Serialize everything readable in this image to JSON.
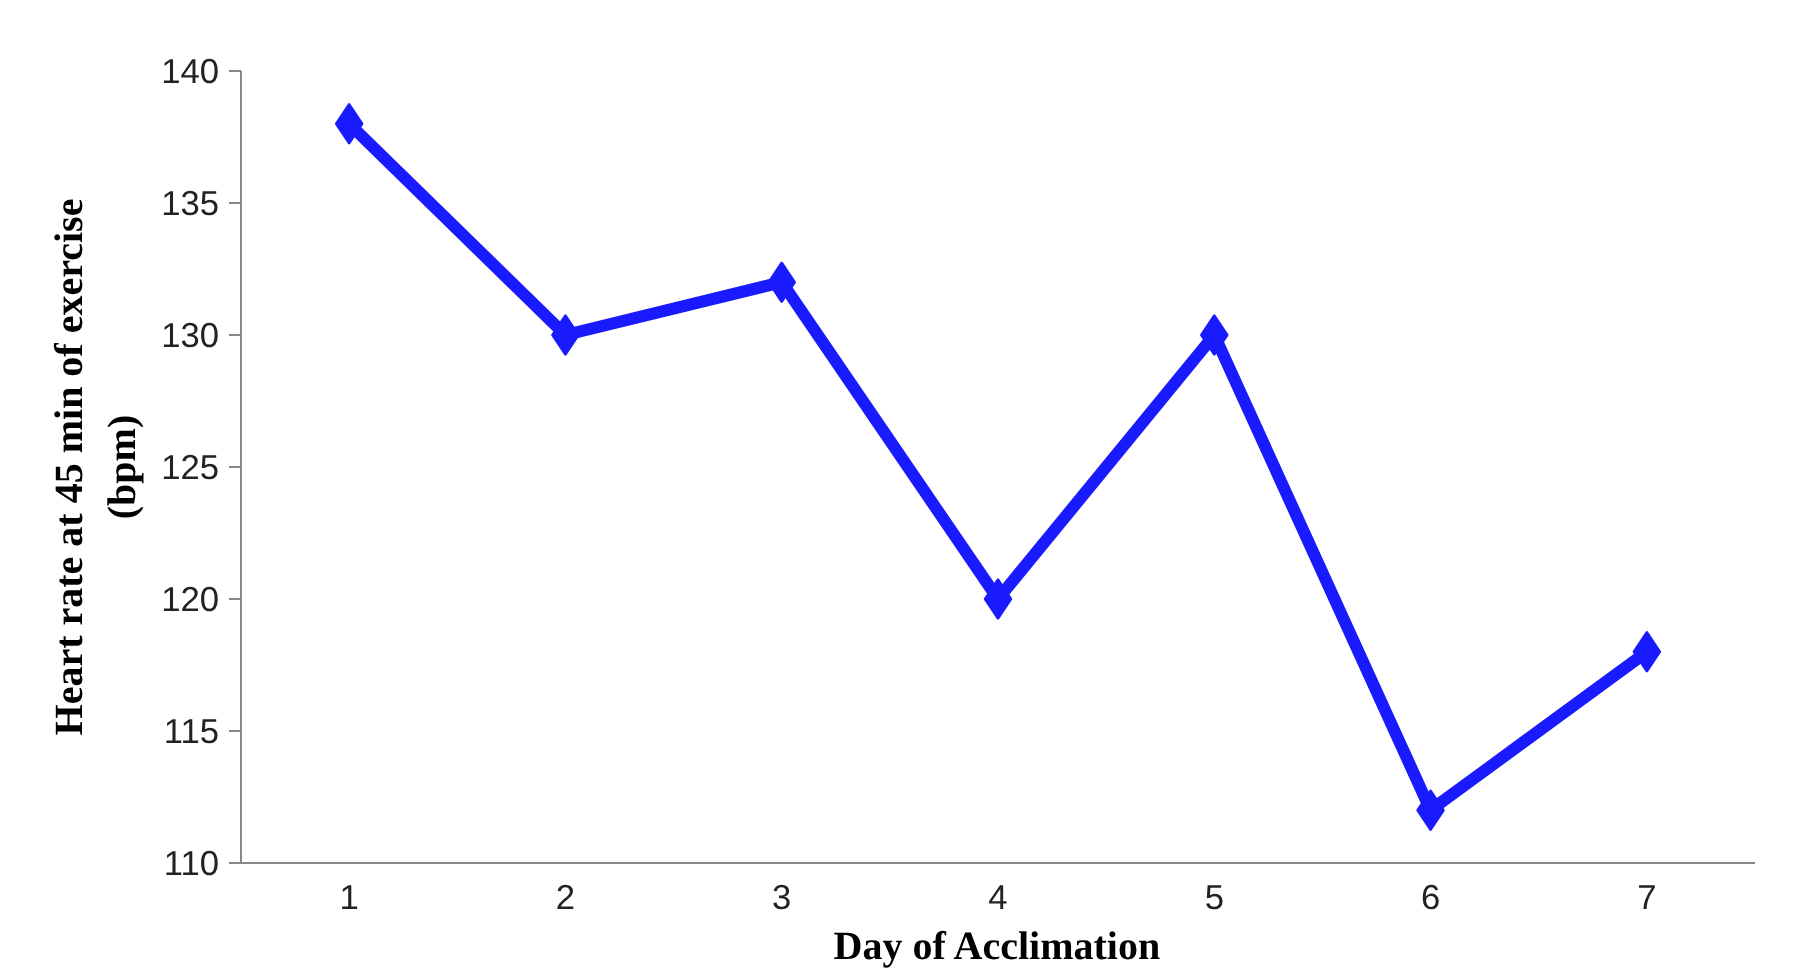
{
  "chart_data": {
    "type": "line",
    "xlabel": "Day of Acclimation",
    "ylabel": "Heart rate at 45 min of exercise\n(bpm)",
    "categories": [
      "1",
      "2",
      "3",
      "4",
      "5",
      "6",
      "7"
    ],
    "series": [
      {
        "color": "#1a1aff",
        "values": [
          138,
          130,
          132,
          120,
          130,
          112,
          118
        ]
      }
    ],
    "ylim": [
      110,
      140
    ],
    "yticks": [
      110,
      115,
      120,
      125,
      130,
      135,
      140
    ],
    "grid": false,
    "marker": "diamond",
    "line_style": "solid"
  }
}
